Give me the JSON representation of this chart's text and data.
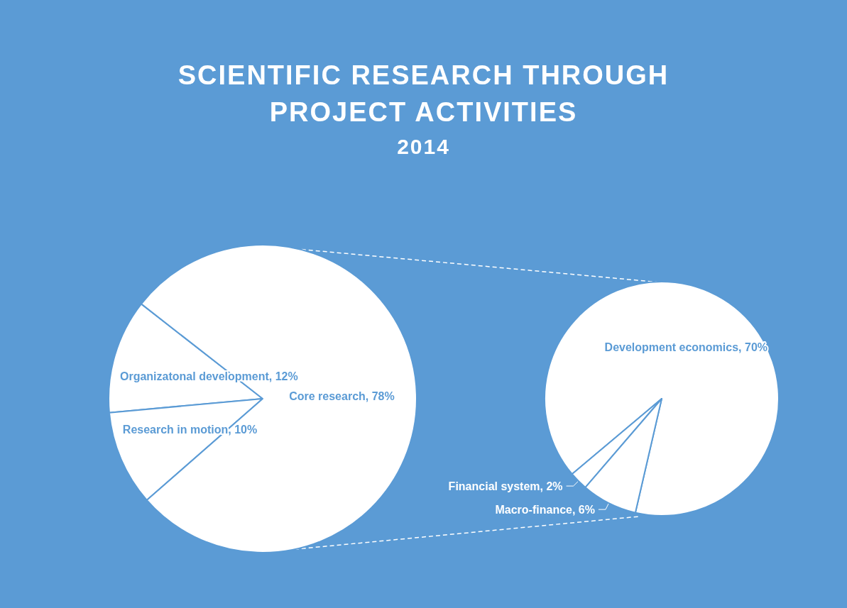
{
  "chart_data": [
    {
      "type": "pie",
      "title": "SCIENTIFIC RESEARCH THROUGH PROJECT ACTIVITIES",
      "subtitle": "2014",
      "categories": [
        "Organizatonal development",
        "Research in motion",
        "Core research"
      ],
      "values": [
        12,
        10,
        78
      ],
      "value_labels": [
        "12%",
        "10%",
        "78%"
      ],
      "colors": [
        "#ffffff",
        "#ffffff",
        "#ffffff"
      ]
    },
    {
      "type": "pie",
      "categories": [
        "Development economics",
        "Financial system",
        "Macro-finance"
      ],
      "values": [
        70,
        2,
        6
      ],
      "value_labels": [
        "70%",
        "2%",
        "6%"
      ],
      "colors": [
        "#ffffff",
        "#ffffff",
        "#ffffff"
      ]
    }
  ]
}
